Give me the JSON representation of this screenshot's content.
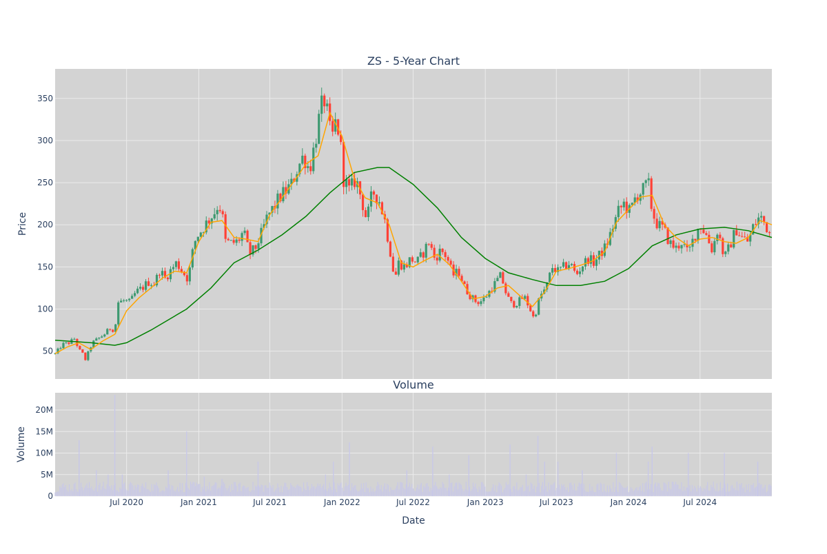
{
  "chart_data": [
    {
      "type": "candlestick",
      "title": "ZS - 5-Year Chart",
      "xlabel": "",
      "ylabel": "Price",
      "ylim": [
        17,
        385
      ],
      "xlim": [
        "2020-01-01",
        "2024-12-31"
      ],
      "grid": true,
      "yticks": [
        50,
        100,
        150,
        200,
        250,
        300,
        350
      ],
      "colors": {
        "plot_bg": "#d3d3d3",
        "grid": "#ebebeb",
        "increasing": "#3d9970",
        "decreasing": "#ff4136",
        "short_ma": "#ffa500",
        "long_ma": "#008000"
      },
      "close": [
        [
          "2020-01-01",
          47
        ],
        [
          "2020-01-20",
          58
        ],
        [
          "2020-02-05",
          60
        ],
        [
          "2020-02-20",
          65
        ],
        [
          "2020-03-01",
          52
        ],
        [
          "2020-03-10",
          48
        ],
        [
          "2020-03-18",
          40
        ],
        [
          "2020-03-25",
          48
        ],
        [
          "2020-04-05",
          60
        ],
        [
          "2020-04-20",
          65
        ],
        [
          "2020-05-05",
          70
        ],
        [
          "2020-05-20",
          77
        ],
        [
          "2020-06-01",
          75
        ],
        [
          "2020-06-10",
          108
        ],
        [
          "2020-06-25",
          110
        ],
        [
          "2020-07-10",
          108
        ],
        [
          "2020-07-25",
          120
        ],
        [
          "2020-08-10",
          125
        ],
        [
          "2020-08-25",
          132
        ],
        [
          "2020-09-10",
          130
        ],
        [
          "2020-09-25",
          148
        ],
        [
          "2020-10-05",
          135
        ],
        [
          "2020-10-20",
          145
        ],
        [
          "2020-11-05",
          155
        ],
        [
          "2020-11-20",
          145
        ],
        [
          "2020-12-05",
          135
        ],
        [
          "2020-12-15",
          165
        ],
        [
          "2020-12-25",
          185
        ],
        [
          "2021-01-10",
          195
        ],
        [
          "2021-01-25",
          205
        ],
        [
          "2021-02-10",
          215
        ],
        [
          "2021-02-20",
          225
        ],
        [
          "2021-03-01",
          215
        ],
        [
          "2021-03-10",
          180
        ],
        [
          "2021-03-25",
          178
        ],
        [
          "2021-04-10",
          180
        ],
        [
          "2021-04-25",
          192
        ],
        [
          "2021-05-10",
          165
        ],
        [
          "2021-05-25",
          172
        ],
        [
          "2021-06-10",
          190
        ],
        [
          "2021-06-25",
          210
        ],
        [
          "2021-07-10",
          220
        ],
        [
          "2021-07-25",
          232
        ],
        [
          "2021-08-10",
          240
        ],
        [
          "2021-08-25",
          248
        ],
        [
          "2021-09-10",
          268
        ],
        [
          "2021-09-25",
          282
        ],
        [
          "2021-10-10",
          265
        ],
        [
          "2021-10-25",
          300
        ],
        [
          "2021-11-05",
          330
        ],
        [
          "2021-11-15",
          350
        ],
        [
          "2021-11-20",
          345
        ],
        [
          "2021-11-28",
          320
        ],
        [
          "2021-12-05",
          300
        ],
        [
          "2021-12-15",
          320
        ],
        [
          "2021-12-25",
          310
        ],
        [
          "2022-01-05",
          255
        ],
        [
          "2022-01-20",
          240
        ],
        [
          "2022-02-05",
          255
        ],
        [
          "2022-02-20",
          230
        ],
        [
          "2022-03-05",
          205
        ],
        [
          "2022-03-20",
          240
        ],
        [
          "2022-04-05",
          230
        ],
        [
          "2022-04-20",
          205
        ],
        [
          "2022-05-05",
          165
        ],
        [
          "2022-05-15",
          135
        ],
        [
          "2022-05-25",
          155
        ],
        [
          "2022-06-10",
          150
        ],
        [
          "2022-06-25",
          160
        ],
        [
          "2022-07-10",
          155
        ],
        [
          "2022-07-25",
          165
        ],
        [
          "2022-08-10",
          180
        ],
        [
          "2022-08-25",
          160
        ],
        [
          "2022-09-10",
          170
        ],
        [
          "2022-09-25",
          162
        ],
        [
          "2022-10-10",
          140
        ],
        [
          "2022-10-25",
          145
        ],
        [
          "2022-11-10",
          125
        ],
        [
          "2022-11-25",
          115
        ],
        [
          "2022-12-10",
          108
        ],
        [
          "2022-12-25",
          110
        ],
        [
          "2023-01-10",
          120
        ],
        [
          "2023-01-25",
          130
        ],
        [
          "2023-02-10",
          140
        ],
        [
          "2023-02-25",
          115
        ],
        [
          "2023-03-10",
          105
        ],
        [
          "2023-03-25",
          108
        ],
        [
          "2023-04-10",
          115
        ],
        [
          "2023-04-25",
          100
        ],
        [
          "2023-05-05",
          88
        ],
        [
          "2023-05-20",
          115
        ],
        [
          "2023-06-05",
          125
        ],
        [
          "2023-06-20",
          150
        ],
        [
          "2023-07-05",
          145
        ],
        [
          "2023-07-20",
          150
        ],
        [
          "2023-08-05",
          155
        ],
        [
          "2023-08-20",
          140
        ],
        [
          "2023-09-05",
          152
        ],
        [
          "2023-09-20",
          160
        ],
        [
          "2023-10-05",
          155
        ],
        [
          "2023-10-20",
          165
        ],
        [
          "2023-11-05",
          175
        ],
        [
          "2023-11-20",
          195
        ],
        [
          "2023-12-05",
          215
        ],
        [
          "2023-12-20",
          225
        ],
        [
          "2024-01-05",
          215
        ],
        [
          "2024-01-20",
          235
        ],
        [
          "2024-02-05",
          240
        ],
        [
          "2024-02-20",
          250
        ],
        [
          "2024-03-01",
          215
        ],
        [
          "2024-03-15",
          200
        ],
        [
          "2024-03-30",
          195
        ],
        [
          "2024-04-15",
          178
        ],
        [
          "2024-05-01",
          172
        ],
        [
          "2024-05-15",
          180
        ],
        [
          "2024-06-01",
          165
        ],
        [
          "2024-06-15",
          185
        ],
        [
          "2024-07-01",
          200
        ],
        [
          "2024-07-15",
          190
        ],
        [
          "2024-08-01",
          170
        ],
        [
          "2024-08-15",
          195
        ],
        [
          "2024-09-01",
          160
        ],
        [
          "2024-09-15",
          175
        ],
        [
          "2024-10-01",
          195
        ],
        [
          "2024-10-15",
          185
        ],
        [
          "2024-11-01",
          180
        ],
        [
          "2024-11-15",
          200
        ],
        [
          "2024-12-01",
          210
        ],
        [
          "2024-12-15",
          200
        ],
        [
          "2024-12-31",
          185
        ]
      ],
      "short_ma": [
        [
          "2020-01-01",
          47
        ],
        [
          "2020-02-01",
          55
        ],
        [
          "2020-03-01",
          60
        ],
        [
          "2020-04-01",
          52
        ],
        [
          "2020-05-01",
          62
        ],
        [
          "2020-06-01",
          70
        ],
        [
          "2020-07-01",
          98
        ],
        [
          "2020-08-01",
          113
        ],
        [
          "2020-09-01",
          125
        ],
        [
          "2020-10-01",
          137
        ],
        [
          "2020-11-01",
          145
        ],
        [
          "2020-12-01",
          143
        ],
        [
          "2021-01-01",
          180
        ],
        [
          "2021-02-01",
          203
        ],
        [
          "2021-03-01",
          205
        ],
        [
          "2021-04-01",
          185
        ],
        [
          "2021-05-01",
          183
        ],
        [
          "2021-06-01",
          180
        ],
        [
          "2021-07-01",
          212
        ],
        [
          "2021-08-01",
          232
        ],
        [
          "2021-09-01",
          252
        ],
        [
          "2021-10-01",
          272
        ],
        [
          "2021-11-01",
          282
        ],
        [
          "2021-12-01",
          333
        ],
        [
          "2022-01-01",
          305
        ],
        [
          "2022-02-01",
          255
        ],
        [
          "2022-03-01",
          232
        ],
        [
          "2022-04-01",
          226
        ],
        [
          "2022-05-01",
          200
        ],
        [
          "2022-06-01",
          155
        ],
        [
          "2022-07-01",
          150
        ],
        [
          "2022-08-01",
          158
        ],
        [
          "2022-09-01",
          165
        ],
        [
          "2022-10-01",
          153
        ],
        [
          "2022-11-01",
          133
        ],
        [
          "2022-12-01",
          112
        ],
        [
          "2023-01-01",
          115
        ],
        [
          "2023-02-01",
          125
        ],
        [
          "2023-03-01",
          128
        ],
        [
          "2023-04-01",
          115
        ],
        [
          "2023-05-01",
          103
        ],
        [
          "2023-06-01",
          120
        ],
        [
          "2023-07-01",
          145
        ],
        [
          "2023-08-01",
          148
        ],
        [
          "2023-09-01",
          152
        ],
        [
          "2023-10-01",
          157
        ],
        [
          "2023-11-01",
          168
        ],
        [
          "2023-12-01",
          203
        ],
        [
          "2024-01-01",
          218
        ],
        [
          "2024-02-01",
          233
        ],
        [
          "2024-03-01",
          235
        ],
        [
          "2024-04-01",
          200
        ],
        [
          "2024-05-01",
          185
        ],
        [
          "2024-06-01",
          175
        ],
        [
          "2024-07-01",
          183
        ],
        [
          "2024-08-01",
          185
        ],
        [
          "2024-09-01",
          180
        ],
        [
          "2024-10-01",
          178
        ],
        [
          "2024-11-01",
          185
        ],
        [
          "2024-12-01",
          205
        ],
        [
          "2024-12-31",
          200
        ]
      ],
      "long_ma": [
        [
          "2020-01-01",
          63
        ],
        [
          "2020-04-01",
          60
        ],
        [
          "2020-06-01",
          57
        ],
        [
          "2020-07-01",
          60
        ],
        [
          "2020-09-01",
          75
        ],
        [
          "2020-12-01",
          100
        ],
        [
          "2021-02-01",
          125
        ],
        [
          "2021-04-01",
          155
        ],
        [
          "2021-06-01",
          170
        ],
        [
          "2021-08-01",
          188
        ],
        [
          "2021-10-01",
          210
        ],
        [
          "2021-12-01",
          238
        ],
        [
          "2022-02-01",
          262
        ],
        [
          "2022-04-01",
          268
        ],
        [
          "2022-05-01",
          268
        ],
        [
          "2022-07-01",
          248
        ],
        [
          "2022-09-01",
          220
        ],
        [
          "2022-11-01",
          185
        ],
        [
          "2023-01-01",
          160
        ],
        [
          "2023-03-01",
          143
        ],
        [
          "2023-05-01",
          135
        ],
        [
          "2023-07-01",
          128
        ],
        [
          "2023-09-01",
          128
        ],
        [
          "2023-11-01",
          133
        ],
        [
          "2024-01-01",
          148
        ],
        [
          "2024-03-01",
          175
        ],
        [
          "2024-05-01",
          188
        ],
        [
          "2024-07-01",
          195
        ],
        [
          "2024-09-01",
          197
        ],
        [
          "2024-11-01",
          193
        ],
        [
          "2024-12-31",
          185
        ]
      ]
    },
    {
      "type": "bar",
      "title": "Volume",
      "xlabel": "Date",
      "ylabel": "Volume",
      "ylim": [
        0,
        24000000
      ],
      "yticks": [
        0,
        5000000,
        10000000,
        15000000,
        20000000
      ],
      "ytick_labels": [
        "0",
        "5M",
        "10M",
        "15M",
        "20M"
      ],
      "xticks": [
        "2020-07-01",
        "2021-01-01",
        "2021-07-01",
        "2022-01-01",
        "2022-07-01",
        "2023-01-01",
        "2023-07-01",
        "2024-01-01",
        "2024-07-01"
      ],
      "xtick_labels": [
        "Jul 2020",
        "Jan 2021",
        "Jul 2021",
        "Jan 2022",
        "Jul 2022",
        "Jan 2023",
        "Jul 2023",
        "Jan 2024",
        "Jul 2024"
      ],
      "bar_color": "#c8c8e8",
      "baseline_volume": 2500000,
      "spikes": [
        [
          "2020-03-02",
          13000000
        ],
        [
          "2020-04-15",
          6000000
        ],
        [
          "2020-05-15",
          5000000
        ],
        [
          "2020-06-01",
          23500000
        ],
        [
          "2020-06-20",
          5000000
        ],
        [
          "2020-10-15",
          6000000
        ],
        [
          "2020-12-01",
          15000000
        ],
        [
          "2021-01-15",
          4500000
        ],
        [
          "2021-03-01",
          4000000
        ],
        [
          "2021-06-01",
          8000000
        ],
        [
          "2021-11-20",
          5000000
        ],
        [
          "2021-12-10",
          8000000
        ],
        [
          "2022-01-20",
          12500000
        ],
        [
          "2022-06-15",
          6000000
        ],
        [
          "2022-08-20",
          11500000
        ],
        [
          "2022-10-01",
          5000000
        ],
        [
          "2022-11-20",
          9500000
        ],
        [
          "2023-03-05",
          12000000
        ],
        [
          "2023-04-15",
          5000000
        ],
        [
          "2023-05-15",
          14000000
        ],
        [
          "2023-06-01",
          8000000
        ],
        [
          "2023-07-05",
          8000000
        ],
        [
          "2023-09-05",
          6000000
        ],
        [
          "2023-12-01",
          10000000
        ],
        [
          "2024-02-20",
          8000000
        ],
        [
          "2024-03-01",
          11500000
        ],
        [
          "2024-06-01",
          10000000
        ],
        [
          "2024-09-01",
          10000000
        ],
        [
          "2024-11-25",
          8000000
        ]
      ]
    }
  ]
}
